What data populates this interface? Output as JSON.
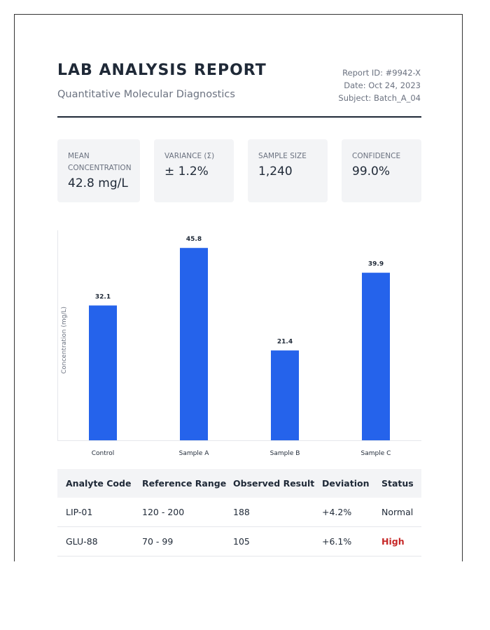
{
  "header": {
    "title": "LAB ANALYSIS REPORT",
    "subtitle": "Quantitative Molecular Diagnostics",
    "report_id": "Report ID: #9942-X",
    "date": "Date: Oct 24, 2023",
    "subject": "Subject: Batch_A_04"
  },
  "stats": [
    {
      "label": "MEAN CONCENTRATION",
      "value": "42.8 mg/L"
    },
    {
      "label": "VARIANCE (σ)",
      "value": "± 1.2%"
    },
    {
      "label": "SAMPLE SIZE",
      "value": "1,240"
    },
    {
      "label": "CONFIDENCE",
      "value": "99.0%"
    }
  ],
  "chart_data": {
    "type": "bar",
    "categories": [
      "Control",
      "Sample A",
      "Sample B",
      "Sample C"
    ],
    "values": [
      32.1,
      45.8,
      21.4,
      39.9
    ],
    "data_labels": [
      "32.1",
      "45.8",
      "21.4",
      "39.9"
    ],
    "ylabel": "Concentration (mg/L)",
    "ylim": [
      0,
      50
    ],
    "grid": false,
    "bar_color": "#2563eb"
  },
  "table": {
    "headers": [
      "Analyte Code",
      "Reference Range",
      "Observed Result",
      "Deviation",
      "Status"
    ],
    "rows": [
      [
        "LIP-01",
        "120 - 200",
        "188",
        "+4.2%",
        "Normal"
      ],
      [
        "GLU-88",
        "70 - 99",
        "105",
        "+6.1%",
        "High"
      ]
    ],
    "status_high_color": "#c62828"
  }
}
